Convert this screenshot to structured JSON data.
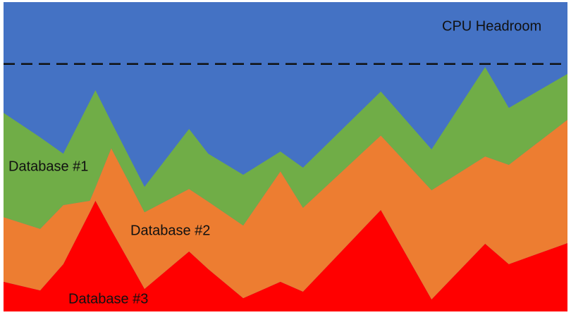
{
  "chart_data": {
    "type": "area",
    "stacked": true,
    "headroom_label": "CPU Headroom",
    "headroom_color": "#4472c4",
    "threshold": 80,
    "xlim": [
      0,
      100
    ],
    "ylim": [
      0,
      100
    ],
    "x": [
      0,
      6.5,
      10.6,
      15.3,
      16.3,
      19.1,
      25,
      32.9,
      36.3,
      42.5,
      49.1,
      53.1,
      66.9,
      75.9,
      85.4,
      89.6,
      100
    ],
    "series": [
      {
        "name": "Database #3",
        "color": "#ff0000",
        "values": [
          9.6,
          6.8,
          15.3,
          32.1,
          35.8,
          26.4,
          7.3,
          19.4,
          13.7,
          4.3,
          9.6,
          6.4,
          32.8,
          3.9,
          21.9,
          15.3,
          22.1
        ]
      },
      {
        "name": "Database #2",
        "color": "#ed7d31",
        "values": [
          20.9,
          19.9,
          19.1,
          3.7,
          4.3,
          26.4,
          24.8,
          20.2,
          21.8,
          23.5,
          35.7,
          27.1,
          24.1,
          35.3,
          28.2,
          32.1,
          39.9
        ]
      },
      {
        "name": "Database #1",
        "color": "#70ad47",
        "values": [
          33.7,
          29.6,
          16.6,
          32.1,
          31.4,
          8.5,
          8.2,
          19.4,
          15.5,
          16.4,
          6.4,
          13.0,
          14.2,
          13.2,
          28.9,
          18.4,
          14.8
        ]
      }
    ]
  }
}
